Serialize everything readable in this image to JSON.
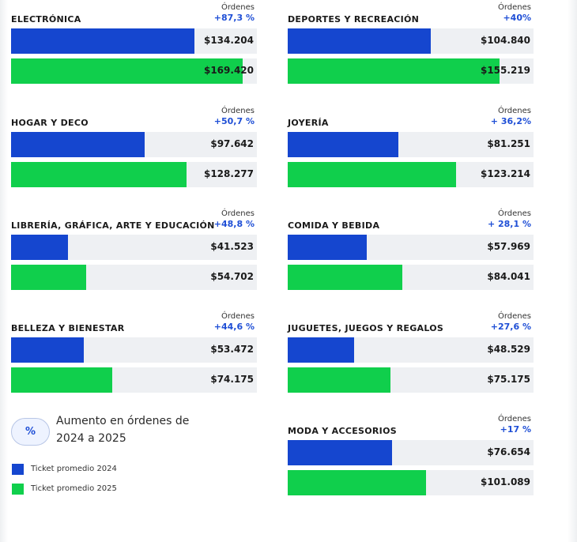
{
  "chart_data": {
    "type": "bar",
    "series_names": [
      "Ticket promedio 2024",
      "Ticket promedio 2025"
    ],
    "orders_label": "Órdenes",
    "categories": [
      {
        "name": "ELECTRÓNICA",
        "orders_change": "+87,3 %",
        "v2024": 134204,
        "v2025": 169420,
        "v2024_label": "$134.204",
        "v2025_label": "$169.420"
      },
      {
        "name": "DEPORTES Y RECREACIÓN",
        "orders_change": "+40%",
        "v2024": 104840,
        "v2025": 155219,
        "v2024_label": "$104.840",
        "v2025_label": "$155.219"
      },
      {
        "name": "HOGAR Y DECO",
        "orders_change": "+50,7 %",
        "v2024": 97642,
        "v2025": 128277,
        "v2024_label": "$97.642",
        "v2025_label": "$128.277"
      },
      {
        "name": "JOYERÍA",
        "orders_change": "+ 36,2%",
        "v2024": 81251,
        "v2025": 123214,
        "v2024_label": "$81.251",
        "v2025_label": "$123.214"
      },
      {
        "name": "LIBRERÍA, GRÁFICA, ARTE Y EDUCACIÓN",
        "orders_change": "+48,8 %",
        "v2024": 41523,
        "v2025": 54702,
        "v2024_label": "$41.523",
        "v2025_label": "$54.702"
      },
      {
        "name": "COMIDA Y BEBIDA",
        "orders_change": "+ 28,1 %",
        "v2024": 57969,
        "v2025": 84041,
        "v2024_label": "$57.969",
        "v2025_label": "$84.041"
      },
      {
        "name": "BELLEZA Y BIENESTAR",
        "orders_change": "+44,6 %",
        "v2024": 53472,
        "v2025": 74175,
        "v2024_label": "$53.472",
        "v2025_label": "$74.175"
      },
      {
        "name": "JUGUETES, JUEGOS Y REGALOS",
        "orders_change": "+27,6 %",
        "v2024": 48529,
        "v2025": 75175,
        "v2024_label": "$48.529",
        "v2025_label": "$75.175"
      },
      {
        "name": "MODA Y ACCESORIOS",
        "orders_change": "+17 %",
        "v2024": 76654,
        "v2025": 101089,
        "v2024_label": "$76.654",
        "v2025_label": "$101.089"
      }
    ],
    "colors": {
      "y2024": "#1546cf",
      "y2025": "#10cf4c",
      "track": "#eef0f3"
    }
  },
  "legend": {
    "pill_symbol": "%",
    "pill_description": "Aumento en órdenes de 2024 a 2025",
    "items": [
      {
        "label": "Ticket promedio 2024",
        "color": "#1546cf"
      },
      {
        "label": "Ticket promedio 2025",
        "color": "#10cf4c"
      }
    ]
  }
}
